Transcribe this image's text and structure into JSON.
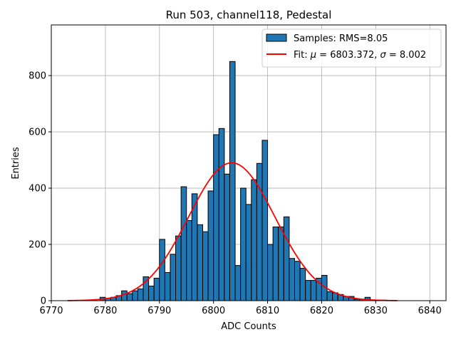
{
  "chart_data": {
    "type": "bar",
    "title": "Run 503, channel118, Pedestal",
    "xlabel": "ADC Counts",
    "ylabel": "Entries",
    "xlim": [
      6770,
      6843
    ],
    "ylim": [
      0,
      980
    ],
    "grid": true,
    "legend_position": "top-right",
    "xticks": [
      6770,
      6780,
      6790,
      6800,
      6810,
      6820,
      6830,
      6840
    ],
    "yticks": [
      0,
      200,
      400,
      600,
      800
    ],
    "histogram": {
      "name": "Samples: RMS=8.05",
      "color": "#1f77b4",
      "edge_color": "#000000",
      "bin_start": 6773,
      "bin_width": 1,
      "values": [
        0,
        0,
        0,
        0,
        0,
        0,
        12,
        8,
        12,
        18,
        35,
        25,
        35,
        42,
        85,
        52,
        80,
        218,
        100,
        165,
        230,
        405,
        285,
        380,
        270,
        245,
        390,
        590,
        612,
        450,
        850,
        125,
        400,
        342,
        430,
        488,
        570,
        200,
        262,
        262,
        298,
        150,
        140,
        115,
        72,
        72,
        80,
        90,
        32,
        28,
        22,
        15,
        15,
        5,
        5,
        12,
        2,
        2,
        2,
        0,
        0
      ]
    },
    "fit": {
      "name": "Fit: μ = 6803.372, σ = 8.002",
      "label_prefix": "Fit: ",
      "mu_symbol": "μ",
      "mu_text": " = 6803.372, ",
      "sigma_symbol": "σ",
      "sigma_text": " = 8.002",
      "color": "#ff0000",
      "mu": 6803.372,
      "sigma": 8.002,
      "amplitude": 490,
      "x_range": [
        6773,
        6834
      ]
    }
  }
}
